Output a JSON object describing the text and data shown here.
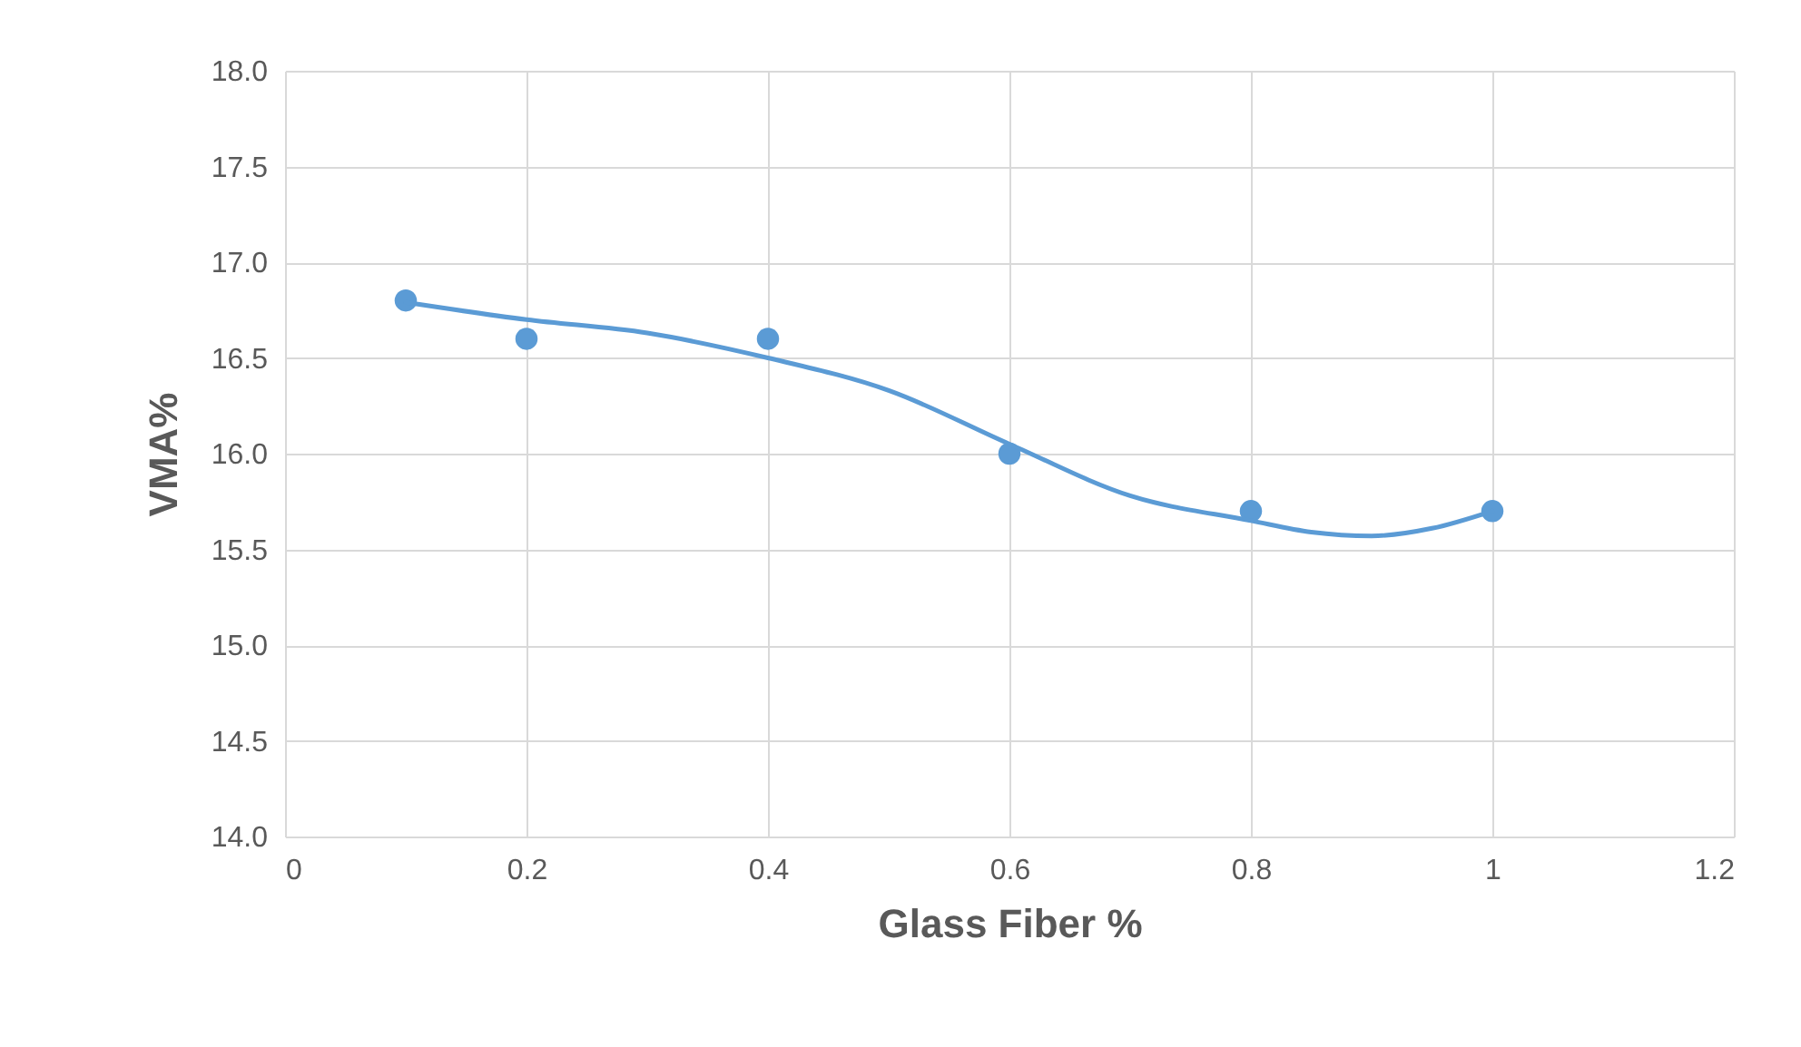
{
  "chart_data": {
    "type": "scatter",
    "xlabel": "Glass Fiber %",
    "ylabel": "VMA%",
    "x": [
      0.1,
      0.2,
      0.4,
      0.6,
      0.8,
      1
    ],
    "series": [
      {
        "color": "#5b9bd5",
        "values": [
          16.8,
          16.6,
          16.6,
          16.0,
          15.7,
          15.7
        ]
      },
      {
        "type": "line",
        "color": "#5b9bd5",
        "marker": "none",
        "x": [
          0.1,
          0.2,
          0.3,
          0.4,
          0.5,
          0.6,
          0.7,
          0.8,
          0.85,
          0.9,
          0.95,
          1
        ],
        "values": [
          16.79,
          16.7,
          16.63,
          16.5,
          16.33,
          16.05,
          15.78,
          15.65,
          15.59,
          15.57,
          15.61,
          15.7
        ]
      }
    ],
    "marker": "circle",
    "grid": true,
    "line_style": "solid",
    "xlim": [
      0,
      1.2
    ],
    "xticks": [
      0,
      0.2,
      0.4,
      0.6,
      0.8,
      1,
      1.2
    ],
    "ylim": [
      14,
      18
    ],
    "yticks": [
      {
        "value": 14,
        "label": "14.0"
      },
      {
        "value": 14.5,
        "label": "14.5"
      },
      {
        "value": 15,
        "label": "15.0"
      },
      {
        "value": 15.5,
        "label": "15.5"
      },
      {
        "value": 16,
        "label": "16.0"
      },
      {
        "value": 16.5,
        "label": "16.5"
      },
      {
        "value": 17,
        "label": "17.0"
      },
      {
        "value": 17.5,
        "label": "17.5"
      },
      {
        "value": 18,
        "label": "18.0"
      }
    ]
  }
}
